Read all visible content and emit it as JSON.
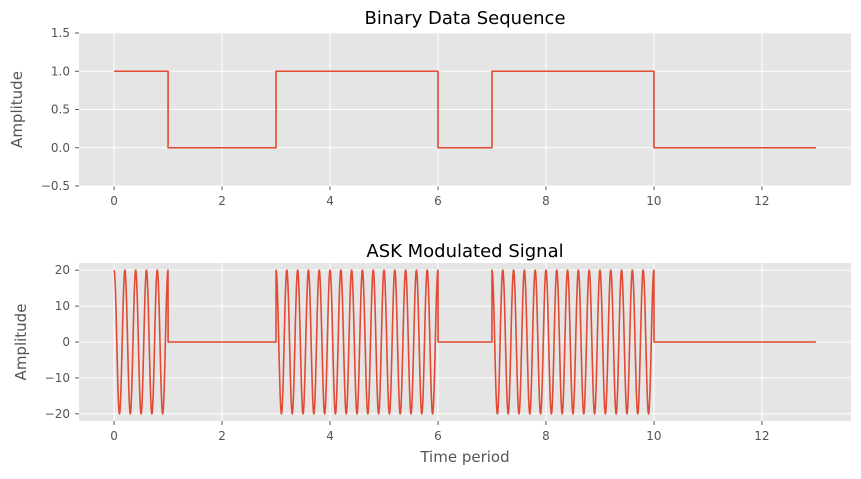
{
  "chart_data": [
    {
      "type": "line",
      "title": "Binary Data Sequence",
      "xlabel": "",
      "ylabel": "Amplitude",
      "xlim": [
        -0.65,
        13.65
      ],
      "ylim": [
        -0.5,
        1.5
      ],
      "xticks": [
        0,
        2,
        4,
        6,
        8,
        10,
        12
      ],
      "yticks": [
        -0.5,
        0.0,
        0.5,
        1.0,
        1.5
      ],
      "ytick_labels": [
        "−0.5",
        "0.0",
        "0.5",
        "1.0",
        "1.5"
      ],
      "grid": true,
      "series": [
        {
          "bits": [
            1,
            0,
            0,
            1,
            1,
            1,
            0,
            1,
            1,
            1,
            0,
            0,
            0
          ],
          "x": [
            0,
            1,
            1,
            3,
            3,
            6,
            6,
            7,
            7,
            10,
            10,
            13
          ],
          "y": [
            1,
            1,
            0,
            0,
            1,
            1,
            0,
            0,
            1,
            1,
            0,
            0
          ],
          "color": "#E24A33"
        }
      ]
    },
    {
      "type": "line",
      "title": "ASK Modulated Signal",
      "xlabel": "Time period",
      "ylabel": "Amplitude",
      "xlim": [
        -0.65,
        13.65
      ],
      "ylim": [
        -22,
        22
      ],
      "xticks": [
        0,
        2,
        4,
        6,
        8,
        10,
        12
      ],
      "yticks": [
        -20,
        -10,
        0,
        10,
        20
      ],
      "ytick_labels": [
        "−20",
        "−10",
        "0",
        "10",
        "20"
      ],
      "grid": true,
      "series": [
        {
          "formula": "20*bit(t)*cos(2*pi*5*t)",
          "amplitude": 20,
          "carrier_cycles_per_unit": 5,
          "color": "#E24A33"
        }
      ]
    }
  ]
}
